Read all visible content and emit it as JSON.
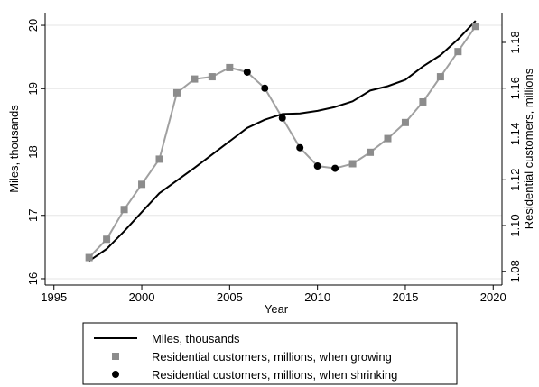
{
  "chart_data": {
    "type": "line",
    "xlabel": "Year",
    "ylabel_left": "Miles, thousands",
    "ylabel_right": "Residential customers, millions",
    "x_ticks": [
      1995,
      2000,
      2005,
      2010,
      2015,
      2020
    ],
    "y_left_ticks": [
      16,
      17,
      18,
      19,
      20
    ],
    "y_right_ticks": [
      "1.08",
      "1.10",
      "1.12",
      "1.14",
      "1.16",
      "1.18"
    ],
    "xlim": [
      1994.5,
      2020.5
    ],
    "ylim_left": [
      15.9,
      20.2
    ],
    "ylim_right": [
      1.074,
      1.193
    ],
    "grid": "horizontal",
    "legend_position": "bottom",
    "series": [
      {
        "name": "Miles, thousands",
        "axis": "left",
        "style": "line",
        "color": "#000000",
        "x": [
          1997,
          1998,
          1999,
          2000,
          2001,
          2002,
          2003,
          2004,
          2005,
          2006,
          2007,
          2008,
          2009,
          2010,
          2011,
          2012,
          2013,
          2014,
          2015,
          2016,
          2017,
          2018,
          2019
        ],
        "values": [
          16.28,
          16.47,
          16.75,
          17.05,
          17.35,
          17.55,
          17.75,
          17.96,
          18.17,
          18.38,
          18.51,
          18.6,
          18.61,
          18.65,
          18.71,
          18.8,
          18.97,
          19.04,
          19.14,
          19.35,
          19.53,
          19.78,
          20.07
        ]
      },
      {
        "name": "Residential customers, millions, when growing",
        "axis": "right",
        "style": "square",
        "color": "#8c8c8c",
        "x": [
          1997,
          1998,
          1999,
          2000,
          2001,
          2002,
          2003,
          2004,
          2005,
          2012,
          2013,
          2014,
          2015,
          2016,
          2017,
          2018,
          2019
        ],
        "values": [
          1.086,
          1.094,
          1.107,
          1.118,
          1.129,
          1.158,
          1.164,
          1.165,
          1.169,
          1.127,
          1.132,
          1.138,
          1.145,
          1.154,
          1.165,
          1.176,
          1.187
        ]
      },
      {
        "name": "Residential customers, millions, when shrinking",
        "axis": "right",
        "style": "circle",
        "color": "#000000",
        "x": [
          2006,
          2007,
          2008,
          2009,
          2010,
          2011
        ],
        "values": [
          1.167,
          1.16,
          1.147,
          1.134,
          1.126,
          1.125
        ]
      }
    ],
    "connector_line_color": "#a0a0a0"
  }
}
